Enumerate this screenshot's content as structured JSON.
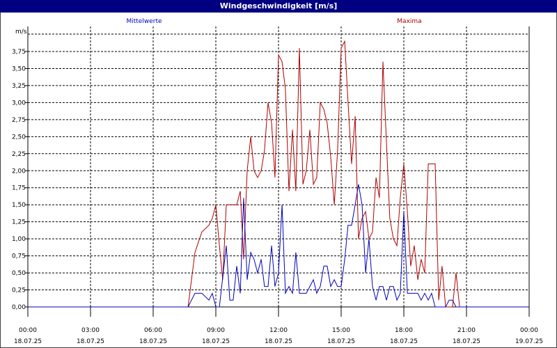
{
  "window": {
    "title": "Windgeschwindigkeit [m/s]"
  },
  "chart_data": {
    "type": "line",
    "title": "Windgeschwindigkeit [m/s]",
    "ylabel": "m/s",
    "ylim": [
      0,
      4
    ],
    "xlim": [
      0,
      24
    ],
    "grid": true,
    "legend_placement": "top",
    "y_ticks": [
      "0,00",
      "0,25",
      "0,50",
      "0,75",
      "1,00",
      "1,25",
      "1,50",
      "1,75",
      "2,00",
      "2,25",
      "2,50",
      "2,75",
      "3,00",
      "3,25",
      "3,50",
      "3,75"
    ],
    "x_ticks": [
      {
        "time": "00:00",
        "date": "18.07.25"
      },
      {
        "time": "03:00",
        "date": "18.07.25"
      },
      {
        "time": "06:00",
        "date": "18.07.25"
      },
      {
        "time": "09:00",
        "date": "18.07.25"
      },
      {
        "time": "12:00",
        "date": "18.07.25"
      },
      {
        "time": "15:00",
        "date": "18.07.25"
      },
      {
        "time": "18:00",
        "date": "18.07.25"
      },
      {
        "time": "21:00",
        "date": "18.07.25"
      },
      {
        "time": "00:00",
        "date": "19.07.25"
      }
    ],
    "series": [
      {
        "name": "Mittelwerte",
        "color": "#0000c0",
        "points": [
          [
            0,
            0
          ],
          [
            7.67,
            0
          ],
          [
            8,
            0.2
          ],
          [
            8.33,
            0.2
          ],
          [
            8.67,
            0.1
          ],
          [
            8.83,
            0.2
          ],
          [
            9,
            0
          ],
          [
            9.17,
            0
          ],
          [
            9.5,
            0.9
          ],
          [
            9.67,
            0.1
          ],
          [
            9.83,
            0.1
          ],
          [
            10,
            0.6
          ],
          [
            10.17,
            0.2
          ],
          [
            10.33,
            1.6
          ],
          [
            10.5,
            0.4
          ],
          [
            10.67,
            0.8
          ],
          [
            10.83,
            0.7
          ],
          [
            11,
            0.5
          ],
          [
            11.17,
            0.7
          ],
          [
            11.33,
            0.3
          ],
          [
            11.5,
            0.3
          ],
          [
            11.67,
            0.9
          ],
          [
            11.83,
            0.3
          ],
          [
            12,
            0.5
          ],
          [
            12.17,
            1.5
          ],
          [
            12.33,
            0.2
          ],
          [
            12.5,
            0.3
          ],
          [
            12.67,
            0.2
          ],
          [
            12.83,
            0.8
          ],
          [
            13,
            0.2
          ],
          [
            13.17,
            0.2
          ],
          [
            13.33,
            0.2
          ],
          [
            13.5,
            0.3
          ],
          [
            13.67,
            0.4
          ],
          [
            13.83,
            0.2
          ],
          [
            14,
            0.3
          ],
          [
            14.17,
            0.6
          ],
          [
            14.33,
            0.6
          ],
          [
            14.5,
            0.3
          ],
          [
            14.67,
            0.4
          ],
          [
            14.83,
            0.3
          ],
          [
            15,
            0.3
          ],
          [
            15.17,
            0.7
          ],
          [
            15.33,
            1.2
          ],
          [
            15.5,
            1.2
          ],
          [
            15.67,
            1.5
          ],
          [
            15.83,
            1.8
          ],
          [
            16,
            1.5
          ],
          [
            16.17,
            0.5
          ],
          [
            16.33,
            1.0
          ],
          [
            16.5,
            0.3
          ],
          [
            16.67,
            0.1
          ],
          [
            16.83,
            0.3
          ],
          [
            17,
            0.3
          ],
          [
            17.17,
            0.1
          ],
          [
            17.33,
            0.3
          ],
          [
            17.5,
            0.3
          ],
          [
            17.67,
            0.1
          ],
          [
            17.83,
            0.2
          ],
          [
            18,
            1.4
          ],
          [
            18.17,
            0.2
          ],
          [
            18.33,
            0.2
          ],
          [
            18.67,
            0.2
          ],
          [
            18.83,
            0.1
          ],
          [
            19,
            0.2
          ],
          [
            19.17,
            0.1
          ],
          [
            19.33,
            0.2
          ],
          [
            19.5,
            0
          ],
          [
            20,
            0
          ],
          [
            20.17,
            0.1
          ],
          [
            20.33,
            0.1
          ],
          [
            20.5,
            0
          ],
          [
            21,
            0
          ],
          [
            24,
            0
          ]
        ]
      },
      {
        "name": "Maxima",
        "color": "#b00000",
        "points": [
          [
            0,
            0
          ],
          [
            7.67,
            0
          ],
          [
            8,
            0.8
          ],
          [
            8.33,
            1.1
          ],
          [
            8.67,
            1.2
          ],
          [
            8.83,
            1.3
          ],
          [
            9,
            1.5
          ],
          [
            9.17,
            0.9
          ],
          [
            9.33,
            0.4
          ],
          [
            9.5,
            1.5
          ],
          [
            9.67,
            1.5
          ],
          [
            10,
            1.5
          ],
          [
            10.17,
            1.7
          ],
          [
            10.33,
            0.7
          ],
          [
            10.5,
            2.0
          ],
          [
            10.67,
            2.5
          ],
          [
            10.83,
            2.0
          ],
          [
            11,
            1.9
          ],
          [
            11.17,
            2.0
          ],
          [
            11.33,
            2.3
          ],
          [
            11.5,
            3.0
          ],
          [
            11.67,
            2.7
          ],
          [
            11.83,
            1.9
          ],
          [
            12,
            3.7
          ],
          [
            12.17,
            3.6
          ],
          [
            12.33,
            3.2
          ],
          [
            12.5,
            1.7
          ],
          [
            12.67,
            2.6
          ],
          [
            12.83,
            1.7
          ],
          [
            13,
            3.8
          ],
          [
            13.17,
            1.8
          ],
          [
            13.33,
            2.0
          ],
          [
            13.5,
            2.6
          ],
          [
            13.67,
            1.8
          ],
          [
            13.83,
            1.9
          ],
          [
            14,
            3.0
          ],
          [
            14.17,
            2.9
          ],
          [
            14.33,
            2.7
          ],
          [
            14.5,
            2.2
          ],
          [
            14.67,
            1.5
          ],
          [
            14.83,
            2.3
          ],
          [
            15,
            3.8
          ],
          [
            15.17,
            3.9
          ],
          [
            15.33,
            3.0
          ],
          [
            15.5,
            2.1
          ],
          [
            15.67,
            2.8
          ],
          [
            15.83,
            1.0
          ],
          [
            16,
            1.3
          ],
          [
            16.17,
            1.4
          ],
          [
            16.33,
            1.0
          ],
          [
            16.5,
            1.1
          ],
          [
            16.67,
            1.9
          ],
          [
            16.83,
            1.6
          ],
          [
            17,
            3.6
          ],
          [
            17.17,
            2.4
          ],
          [
            17.33,
            1.3
          ],
          [
            17.5,
            1.0
          ],
          [
            17.67,
            0.9
          ],
          [
            17.83,
            1.6
          ],
          [
            18,
            2.1
          ],
          [
            18.17,
            1.4
          ],
          [
            18.33,
            0.6
          ],
          [
            18.5,
            0.9
          ],
          [
            18.67,
            0.4
          ],
          [
            18.83,
            0.7
          ],
          [
            19,
            0.5
          ],
          [
            19.17,
            2.1
          ],
          [
            19.5,
            2.1
          ],
          [
            19.67,
            0.1
          ],
          [
            19.83,
            0.6
          ],
          [
            20,
            0
          ],
          [
            20.33,
            0
          ],
          [
            20.5,
            0.5
          ],
          [
            20.67,
            0
          ],
          [
            21,
            0
          ],
          [
            24,
            0
          ]
        ]
      }
    ]
  }
}
